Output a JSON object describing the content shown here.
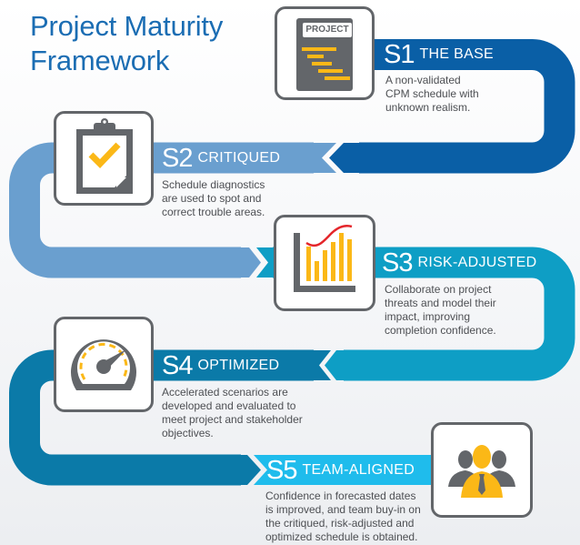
{
  "title": {
    "line1": "Project Maturity",
    "line2": "Framework"
  },
  "colors": {
    "title": "#1b6db3",
    "s1": "#0a5fa6",
    "s2": "#6a9fcf",
    "s3": "#0e9ec5",
    "s4": "#0b7aa8",
    "s5": "#1fbcec",
    "icon_gray": "#63666a",
    "icon_accent": "#fbb817",
    "curve_red": "#e4262b"
  },
  "stages": [
    {
      "num": "S1",
      "label": "THE BASE",
      "icon": "project-gantt-icon",
      "icon_text": "PROJECT",
      "description": [
        "A non-validated",
        "CPM schedule with",
        "unknown realism."
      ]
    },
    {
      "num": "S2",
      "label": "CRITIQUED",
      "icon": "clipboard-check-icon",
      "description": [
        "Schedule diagnostics",
        "are used to spot and",
        "correct trouble areas."
      ]
    },
    {
      "num": "S3",
      "label": "RISK-ADJUSTED",
      "icon": "bar-chart-curve-icon",
      "description": [
        "Collaborate on project",
        "threats and model their",
        "impact, improving",
        "completion confidence."
      ]
    },
    {
      "num": "S4",
      "label": "OPTIMIZED",
      "icon": "speedometer-icon",
      "description": [
        "Accelerated scenarios are",
        "developed and evaluated to",
        "meet project and stakeholder",
        "objectives."
      ]
    },
    {
      "num": "S5",
      "label": "TEAM-ALIGNED",
      "icon": "team-people-icon",
      "description": [
        "Confidence in forecasted dates",
        "is improved, and team buy-in on",
        "the critiqued, risk-adjusted and",
        "optimized schedule is obtained."
      ]
    }
  ]
}
